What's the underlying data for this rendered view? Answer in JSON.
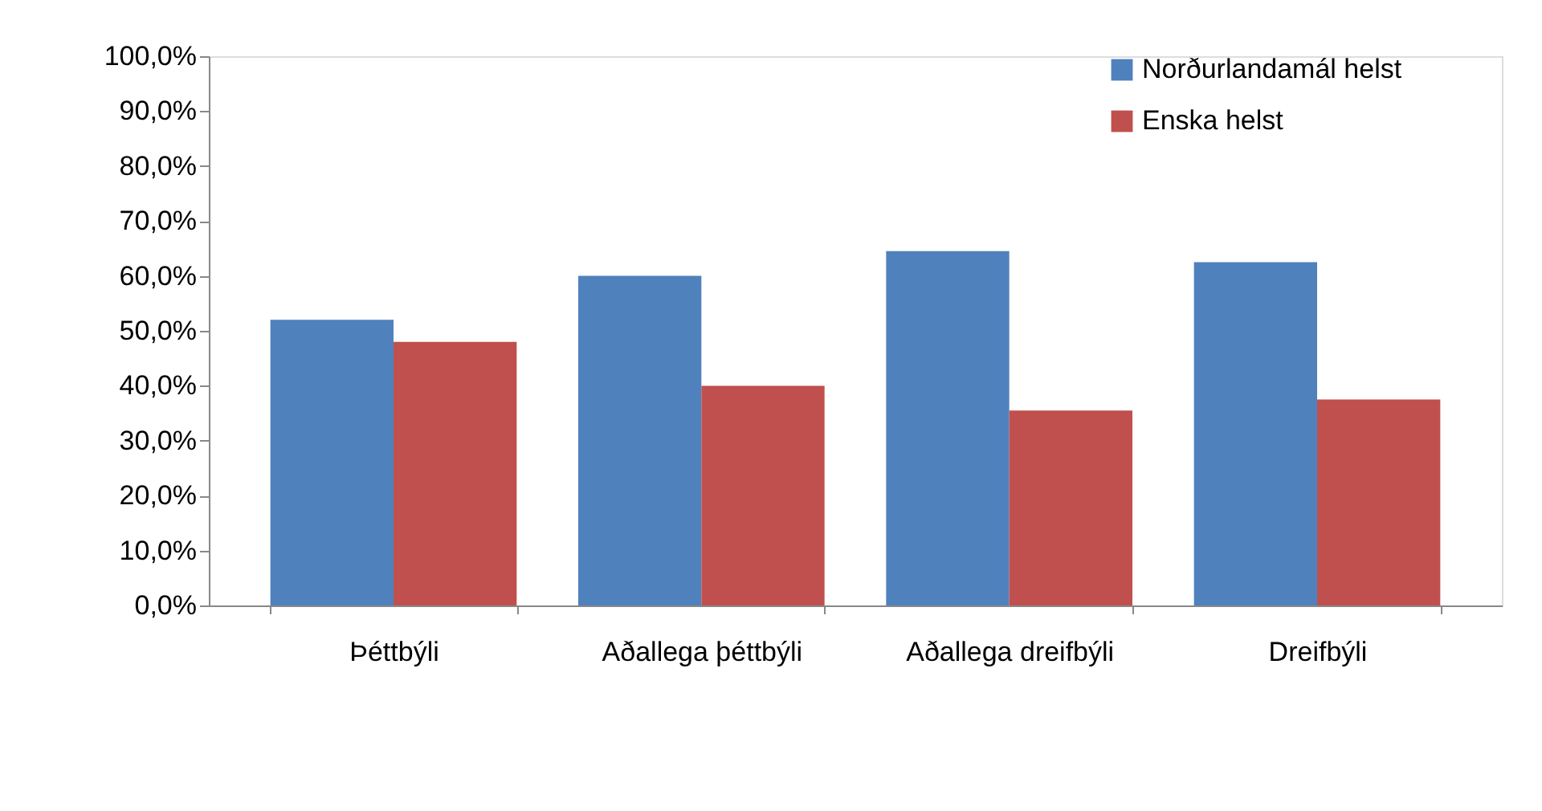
{
  "chart_data": {
    "type": "bar",
    "categories": [
      "Þéttbýli",
      "Aðallega þéttbýli",
      "Aðallega dreifbýli",
      "Dreifbýli"
    ],
    "series": [
      {
        "name": "Norðurlandamál helst",
        "color": "#4f81bd",
        "values": [
          52,
          60,
          64.5,
          62.5
        ]
      },
      {
        "name": "Enska helst",
        "color": "#c0504d",
        "values": [
          48,
          40,
          35.5,
          37.5
        ]
      }
    ],
    "ylim": [
      0,
      100
    ],
    "yticks": [
      {
        "value": 0,
        "label": "0,0%"
      },
      {
        "value": 10,
        "label": "10,0%"
      },
      {
        "value": 20,
        "label": "20,0%"
      },
      {
        "value": 30,
        "label": "30,0%"
      },
      {
        "value": 40,
        "label": "40,0%"
      },
      {
        "value": 50,
        "label": "50,0%"
      },
      {
        "value": 60,
        "label": "60,0%"
      },
      {
        "value": 70,
        "label": "70,0%"
      },
      {
        "value": 80,
        "label": "80,0%"
      },
      {
        "value": 90,
        "label": "90,0%"
      },
      {
        "value": 100,
        "label": "100,0%"
      }
    ],
    "grid": false,
    "legend": "top right"
  }
}
